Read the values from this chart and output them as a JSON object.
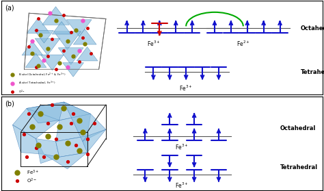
{
  "fig_width": 4.74,
  "fig_height": 2.79,
  "dpi": 100,
  "bg_color": "#ffffff",
  "panel_a_label": "(a)",
  "panel_b_label": "(b)",
  "blue": "#1111cc",
  "red": "#cc0000",
  "green": "#00aa00",
  "gray": "#555555",
  "black": "#111111",
  "label_octahedral": "Octahedral",
  "label_tetrahedral": "Tetrahedral",
  "light_blue": "#a8d0e8",
  "crystal_blue": "#87BCDE",
  "olive": "#6b6b00",
  "pink": "#ff66bb",
  "dark_red": "#cc2200"
}
